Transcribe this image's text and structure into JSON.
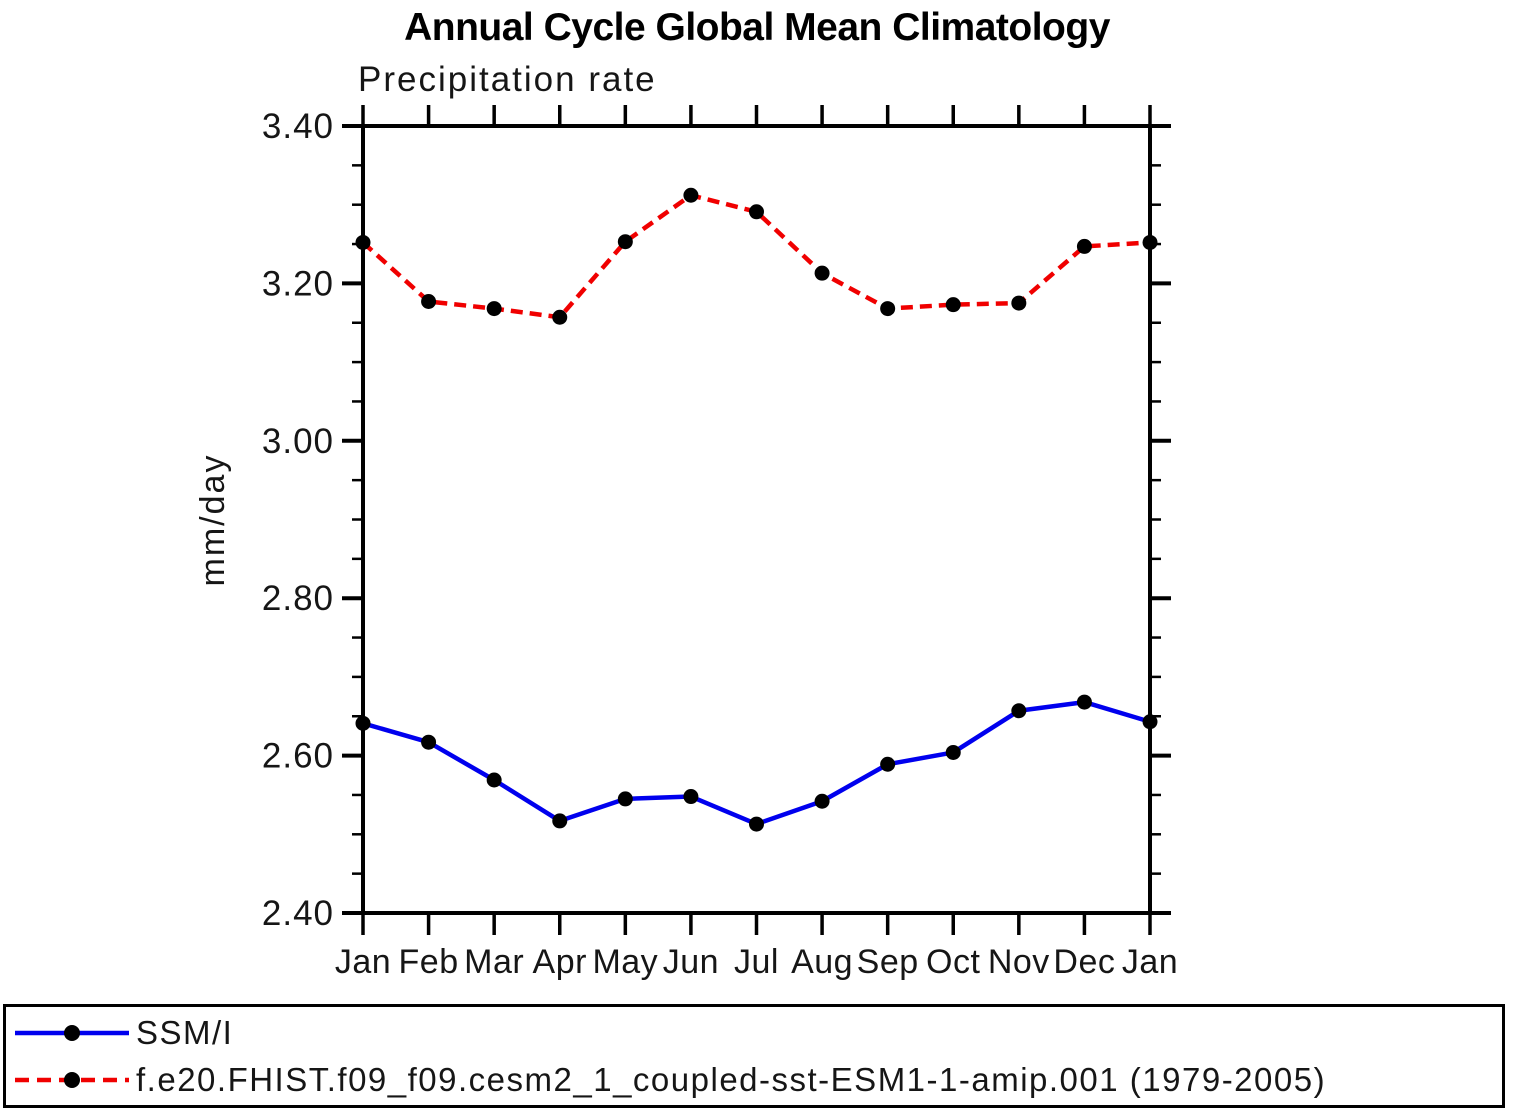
{
  "page": {
    "background": "#ffffff"
  },
  "chart_data": {
    "type": "line",
    "title": "Annual Cycle Global Mean Climatology",
    "subtitle": "Precipitation rate",
    "ylabel": "mm/day",
    "categories": [
      "Jan",
      "Feb",
      "Mar",
      "Apr",
      "May",
      "Jun",
      "Jul",
      "Aug",
      "Sep",
      "Oct",
      "Nov",
      "Dec",
      "Jan"
    ],
    "ylim": [
      2.4,
      3.4
    ],
    "ytick_step_major": 0.2,
    "ytick_step_minor": 0.05,
    "ytick_labels": [
      "3.40",
      "3.20",
      "3.00",
      "2.80",
      "2.60",
      "2.40"
    ],
    "grid": false,
    "legend_position": "bottom-box",
    "series": [
      {
        "name": "SSM/I",
        "color": "#0000EE",
        "line_style": "solid",
        "marker": "filled-circle",
        "marker_color": "#000000",
        "values": [
          2.641,
          2.617,
          2.569,
          2.517,
          2.545,
          2.548,
          2.513,
          2.542,
          2.589,
          2.604,
          2.657,
          2.668,
          2.643
        ]
      },
      {
        "name": "f.e20.FHIST.f09_f09.cesm2_1_coupled-sst-ESM1-1-amip.001 (1979-2005)",
        "color": "#F00000",
        "line_style": "dashed",
        "marker": "filled-circle",
        "marker_color": "#000000",
        "values": [
          3.252,
          3.177,
          3.168,
          3.157,
          3.253,
          3.312,
          3.291,
          3.213,
          3.168,
          3.173,
          3.175,
          3.247,
          3.252
        ]
      }
    ]
  }
}
